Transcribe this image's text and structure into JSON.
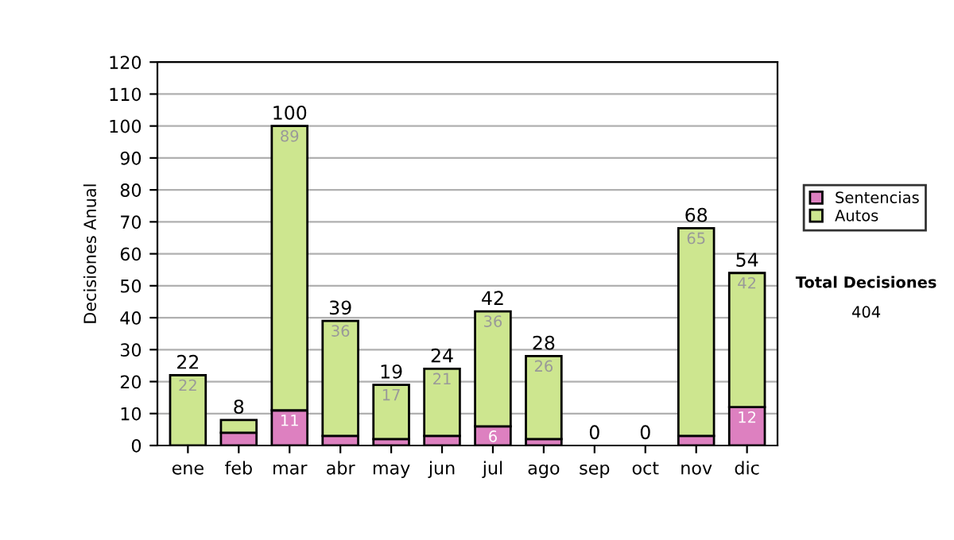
{
  "chart_data": {
    "type": "bar",
    "stacked": true,
    "ylabel": "Decisiones Anual",
    "categories": [
      "ene",
      "feb",
      "mar",
      "abr",
      "may",
      "jun",
      "jul",
      "ago",
      "sep",
      "oct",
      "nov",
      "dic"
    ],
    "series": [
      {
        "name": "Sentencias",
        "color": "#dd80c0",
        "values": [
          0,
          4,
          11,
          3,
          2,
          3,
          6,
          2,
          0,
          0,
          3,
          12
        ],
        "value_labels": [
          null,
          null,
          "11",
          null,
          null,
          null,
          "6",
          null,
          null,
          null,
          null,
          "12"
        ]
      },
      {
        "name": "Autos",
        "color": "#cde68f",
        "values": [
          22,
          4,
          89,
          36,
          17,
          21,
          36,
          26,
          0,
          0,
          65,
          42
        ],
        "value_labels": [
          "22",
          null,
          "89",
          "36",
          "17",
          "21",
          "36",
          "26",
          null,
          null,
          "65",
          "42"
        ]
      }
    ],
    "totals": [
      "22",
      "8",
      "100",
      "39",
      "19",
      "24",
      "42",
      "28",
      "0",
      "0",
      "68",
      "54"
    ],
    "ylim": [
      0,
      120
    ],
    "yticks": [
      0,
      10,
      20,
      30,
      40,
      50,
      60,
      70,
      80,
      90,
      100,
      110,
      120
    ],
    "grid": "y",
    "legend": "right",
    "annotations": [
      "Total Decisiones",
      "404"
    ]
  }
}
